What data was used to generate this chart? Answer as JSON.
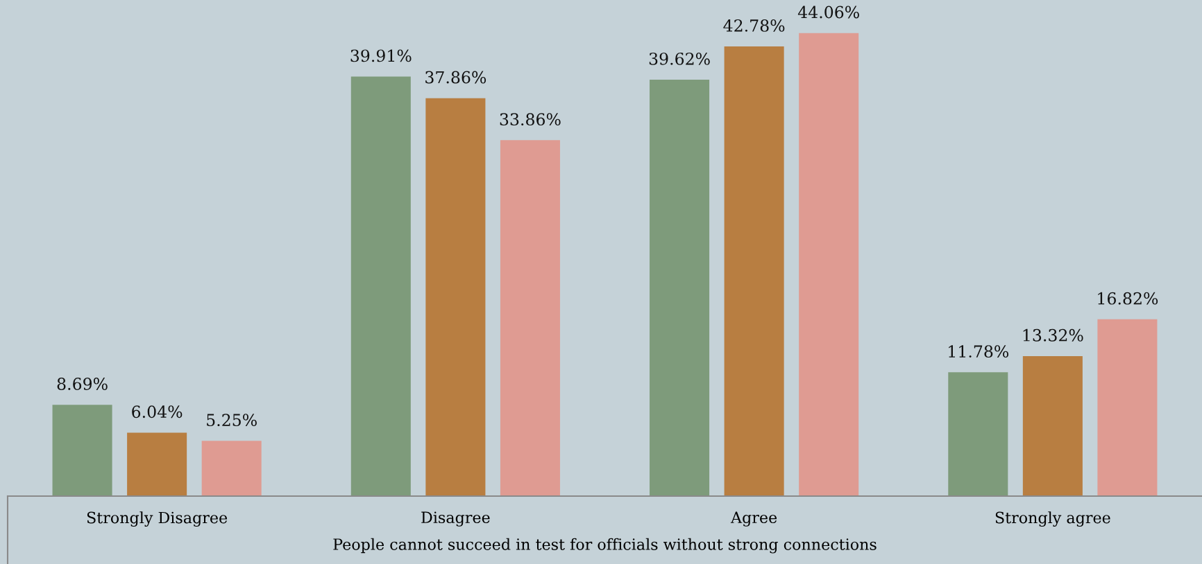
{
  "chart_data": {
    "type": "bar",
    "xlabel": "People cannot succeed in test for officials without strong connections",
    "categories": [
      "Strongly Disagree",
      "Disagree",
      "Agree",
      "Strongly agree"
    ],
    "series": [
      {
        "color": "#7e9b7b",
        "values": [
          8.69,
          39.91,
          39.62,
          11.78
        ],
        "value_labels": [
          "8.69%",
          "39.91%",
          "39.62%",
          "11.78%"
        ]
      },
      {
        "color": "#b87e41",
        "values": [
          6.04,
          37.86,
          42.78,
          13.32
        ],
        "value_labels": [
          "6.04%",
          "37.86%",
          "42.78%",
          "13.32%"
        ]
      },
      {
        "color": "#df9b92",
        "values": [
          5.25,
          33.86,
          44.06,
          16.82
        ],
        "value_labels": [
          "5.25%",
          "33.86%",
          "44.06%",
          "16.82%"
        ]
      }
    ],
    "ylim": [
      0,
      47.2
    ],
    "tick_labels": "x"
  }
}
